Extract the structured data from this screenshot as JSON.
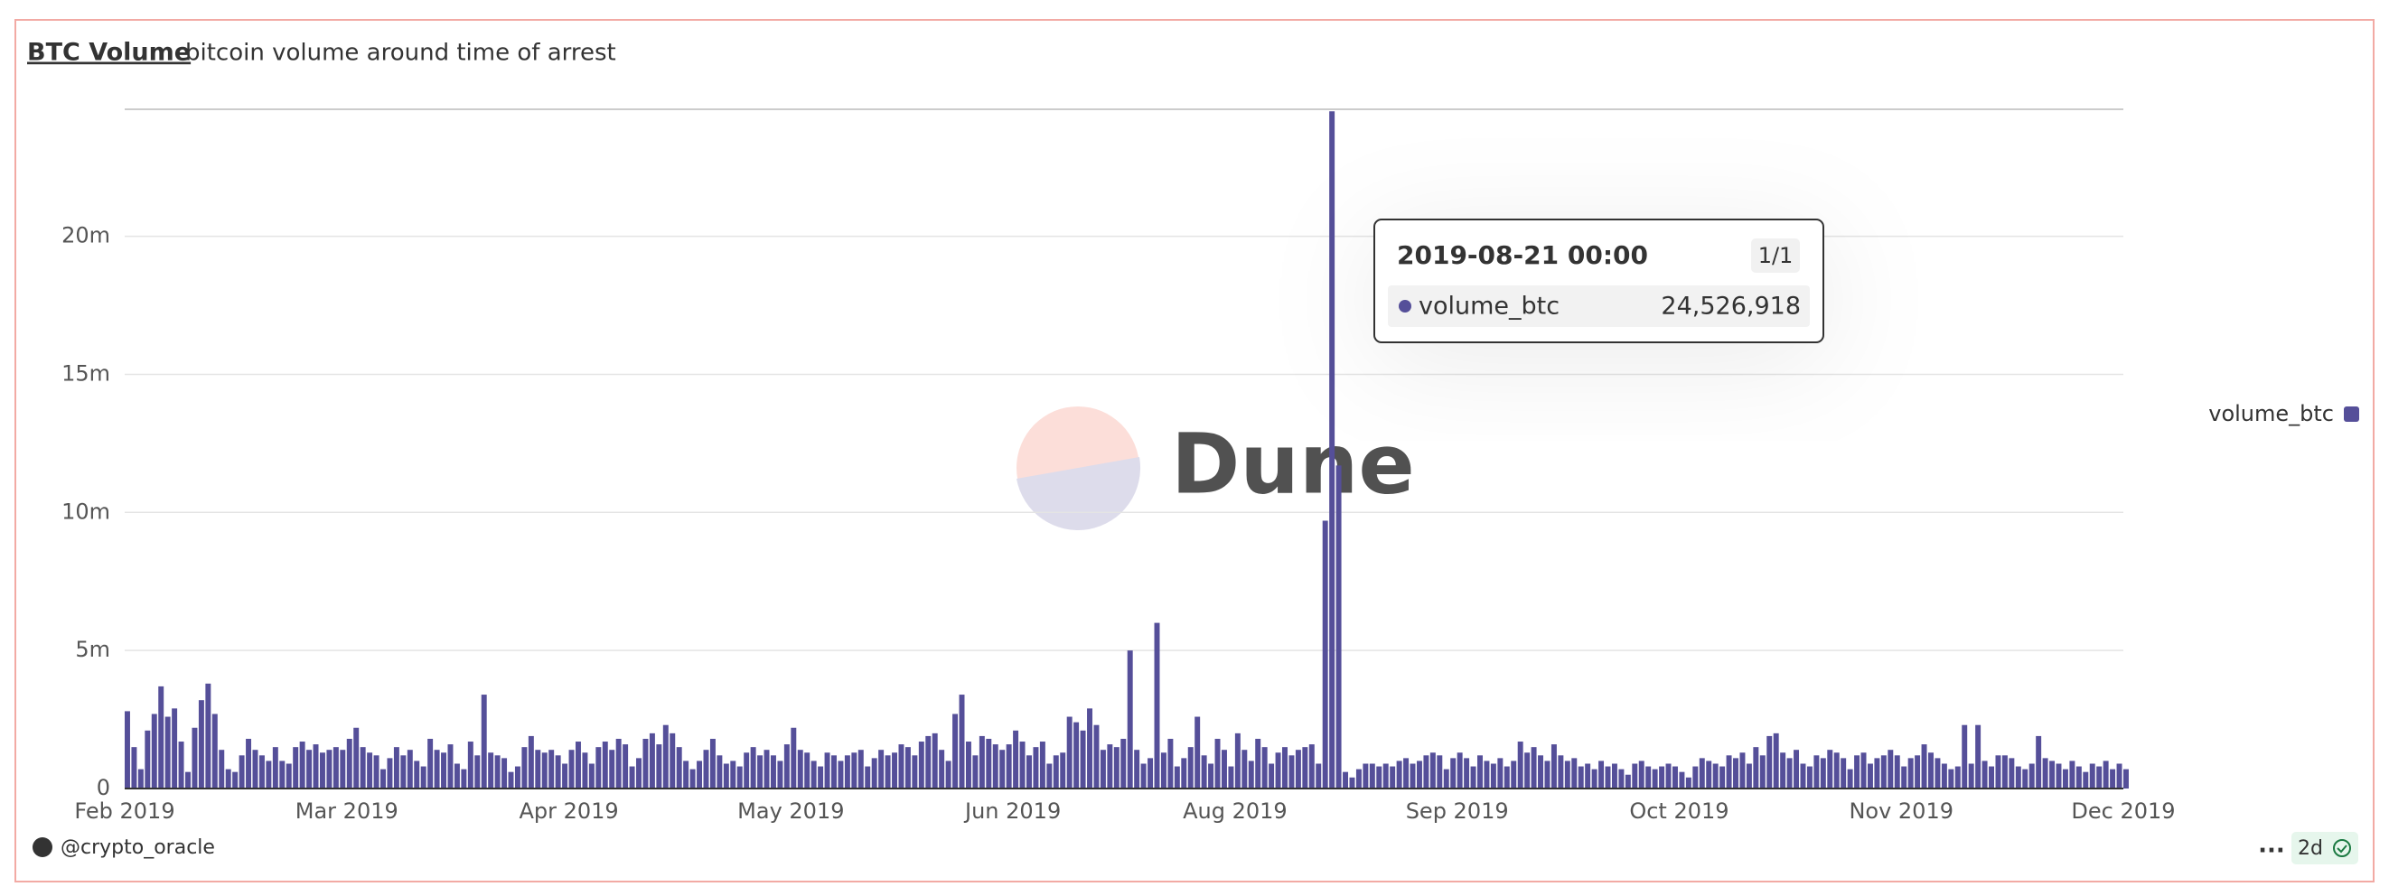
{
  "chart_data": {
    "type": "bar",
    "title": "BTC Volume",
    "subtitle": "bitcoin volume around time of arrest",
    "categories": [
      "Feb 2019",
      null,
      null,
      null,
      null,
      null,
      null,
      null,
      null,
      null,
      null,
      null,
      null,
      null,
      null,
      null,
      null,
      null,
      null,
      null,
      null,
      null,
      null,
      null,
      null,
      null,
      null,
      null,
      null,
      null,
      null,
      null,
      null,
      "Mar 2019",
      null,
      null,
      null,
      null,
      null,
      null,
      null,
      null,
      null,
      null,
      null,
      null,
      null,
      null,
      null,
      null,
      null,
      null,
      null,
      null,
      null,
      null,
      null,
      null,
      null,
      null,
      null,
      null,
      null,
      null,
      null,
      null,
      "Apr 2019",
      null,
      null,
      null,
      null,
      null,
      null,
      null,
      null,
      null,
      null,
      null,
      null,
      null,
      null,
      null,
      null,
      null,
      null,
      null,
      null,
      null,
      null,
      null,
      null,
      null,
      null,
      null,
      null,
      null,
      null,
      null,
      null,
      "May 2019",
      null,
      null,
      null,
      null,
      null,
      null,
      null,
      null,
      null,
      null,
      null,
      null,
      null,
      null,
      null,
      null,
      null,
      null,
      null,
      null,
      null,
      null,
      null,
      null,
      null,
      null,
      null,
      null,
      null,
      null,
      null,
      null,
      "Jun 2019",
      null,
      null,
      null,
      null,
      null,
      null,
      null,
      null,
      null,
      null,
      null,
      null,
      null,
      null,
      null,
      null,
      null,
      null,
      null,
      null,
      null,
      null,
      null,
      null,
      null,
      null,
      null,
      null,
      null,
      null,
      null,
      null,
      "Aug 2019",
      null,
      null,
      null,
      null,
      null,
      null,
      null,
      null,
      null,
      null,
      null,
      null,
      null,
      null,
      null,
      null,
      null,
      null,
      null,
      null,
      null,
      null,
      null,
      null,
      null,
      null,
      null,
      null,
      null,
      null,
      null,
      null,
      "Sep 2019",
      null,
      null,
      null,
      null,
      null,
      null,
      null,
      null,
      null,
      null,
      null,
      null,
      null,
      null,
      null,
      null,
      null,
      null,
      null,
      null,
      null,
      null,
      null,
      null,
      null,
      null,
      null,
      null,
      null,
      null,
      null,
      null,
      "Oct 2019",
      null,
      null,
      null,
      null,
      null,
      null,
      null,
      null,
      null,
      null,
      null,
      null,
      null,
      null,
      null,
      null,
      null,
      null,
      null,
      null,
      null,
      null,
      null,
      null,
      null,
      null,
      null,
      null,
      null,
      null,
      null,
      null,
      "Nov 2019",
      null,
      null,
      null,
      null,
      null,
      null,
      null,
      null,
      null,
      null,
      null,
      null,
      null,
      null,
      null,
      null,
      null,
      null,
      null,
      null,
      null,
      null,
      null,
      null,
      null,
      null,
      null,
      null,
      null,
      null,
      null,
      null,
      "Dec 2019"
    ],
    "series": [
      {
        "name": "volume_btc",
        "color": "#554f99",
        "values": [
          2800000.0,
          1500000.0,
          700000.0,
          2100000.0,
          2700000.0,
          3700000.0,
          2600000.0,
          2900000.0,
          1700000.0,
          600000.0,
          2200000.0,
          3200000.0,
          3800000.0,
          2700000.0,
          1400000.0,
          700000.0,
          600000.0,
          1200000.0,
          1800000.0,
          1400000.0,
          1200000.0,
          1000000.0,
          1500000.0,
          1000000.0,
          900000.0,
          1500000.0,
          1700000.0,
          1400000.0,
          1600000.0,
          1300000.0,
          1400000.0,
          1500000.0,
          1400000.0,
          1800000.0,
          2200000.0,
          1500000.0,
          1300000.0,
          1200000.0,
          700000.0,
          1100000.0,
          1500000.0,
          1200000.0,
          1400000.0,
          1000000.0,
          800000.0,
          1800000.0,
          1400000.0,
          1300000.0,
          1600000.0,
          900000.0,
          700000.0,
          1700000.0,
          1200000.0,
          3400000.0,
          1300000.0,
          1200000.0,
          1100000.0,
          600000.0,
          800000.0,
          1500000.0,
          1900000.0,
          1400000.0,
          1300000.0,
          1400000.0,
          1200000.0,
          900000.0,
          1400000.0,
          1700000.0,
          1300000.0,
          900000.0,
          1500000.0,
          1700000.0,
          1400000.0,
          1800000.0,
          1600000.0,
          800000.0,
          1100000.0,
          1800000.0,
          2000000.0,
          1600000.0,
          2300000.0,
          2000000.0,
          1500000.0,
          1000000.0,
          700000.0,
          1000000.0,
          1400000.0,
          1800000.0,
          1200000.0,
          900000.0,
          1000000.0,
          800000.0,
          1300000.0,
          1500000.0,
          1200000.0,
          1400000.0,
          1200000.0,
          1000000.0,
          1600000.0,
          2200000.0,
          1400000.0,
          1300000.0,
          1000000.0,
          800000.0,
          1300000.0,
          1200000.0,
          1000000.0,
          1200000.0,
          1300000.0,
          1400000.0,
          800000.0,
          1100000.0,
          1400000.0,
          1200000.0,
          1300000.0,
          1600000.0,
          1500000.0,
          1200000.0,
          1700000.0,
          1900000.0,
          2000000.0,
          1400000.0,
          1000000.0,
          2700000.0,
          3400000.0,
          1700000.0,
          1200000.0,
          1900000.0,
          1800000.0,
          1600000.0,
          1400000.0,
          1600000.0,
          2100000.0,
          1700000.0,
          1200000.0,
          1500000.0,
          1700000.0,
          900000.0,
          1200000.0,
          1300000.0,
          2600000.0,
          2400000.0,
          2100000.0,
          2900000.0,
          2300000.0,
          1400000.0,
          1600000.0,
          1500000.0,
          1800000.0,
          5000000.0,
          1400000.0,
          900000.0,
          1100000.0,
          6000000.0,
          1300000.0,
          1800000.0,
          800000.0,
          1100000.0,
          1500000.0,
          2600000.0,
          1200000.0,
          900000.0,
          1800000.0,
          1400000.0,
          800000.0,
          2000000.0,
          1400000.0,
          1000000.0,
          1800000.0,
          1500000.0,
          900000.0,
          1300000.0,
          1500000.0,
          1200000.0,
          1400000.0,
          1500000.0,
          1600000.0,
          900000.0,
          9700000.0,
          24526918,
          11700000.0,
          600000.0,
          400000.0,
          700000.0,
          900000.0,
          900000.0,
          800000.0,
          900000.0,
          800000.0,
          1000000.0,
          1100000.0,
          900000.0,
          1000000.0,
          1200000.0,
          1300000.0,
          1200000.0,
          700000.0,
          1100000.0,
          1300000.0,
          1100000.0,
          800000.0,
          1200000.0,
          1000000.0,
          900000.0,
          1100000.0,
          800000.0,
          1000000.0,
          1700000.0,
          1300000.0,
          1500000.0,
          1200000.0,
          1000000.0,
          1600000.0,
          1200000.0,
          1000000.0,
          1100000.0,
          800000.0,
          900000.0,
          700000.0,
          1000000.0,
          800000.0,
          900000.0,
          700000.0,
          500000.0,
          900000.0,
          1000000.0,
          800000.0,
          700000.0,
          800000.0,
          900000.0,
          800000.0,
          600000.0,
          400000.0,
          800000.0,
          1100000.0,
          1000000.0,
          900000.0,
          800000.0,
          1200000.0,
          1100000.0,
          1300000.0,
          900000.0,
          1500000.0,
          1200000.0,
          1900000.0,
          2000000.0,
          1300000.0,
          1100000.0,
          1400000.0,
          900000.0,
          800000.0,
          1200000.0,
          1100000.0,
          1400000.0,
          1300000.0,
          1100000.0,
          700000.0,
          1200000.0,
          1300000.0,
          900000.0,
          1100000.0,
          1200000.0,
          1400000.0,
          1200000.0,
          800000.0,
          1100000.0,
          1200000.0,
          1600000.0,
          1300000.0,
          1100000.0,
          900000.0,
          700000.0,
          800000.0,
          2300000.0,
          900000.0,
          2300000.0,
          1000000.0,
          800000.0,
          1200000.0,
          1200000.0,
          1100000.0,
          800000.0,
          700000.0,
          900000.0,
          1900000.0,
          1100000.0,
          1000000.0,
          900000.0,
          700000.0,
          1000000.0,
          800000.0,
          600000.0,
          900000.0,
          800000.0,
          1000000.0,
          700000.0,
          900000.0,
          700000.0
        ]
      }
    ],
    "ylim": [
      0,
      24600000
    ],
    "yticks": [
      0,
      {
        "value": 5000000,
        "label": "5m"
      },
      {
        "value": 10000000,
        "label": "10m"
      },
      {
        "value": 15000000,
        "label": "15m"
      },
      {
        "value": 20000000,
        "label": "20m"
      }
    ],
    "grid": true,
    "legend": "right",
    "tooltip": {
      "title": "2019-08-21 00:00",
      "counter": "1/1",
      "index": 179,
      "label": "24,526,918"
    },
    "watermark": "Dune",
    "author": "@crypto_oracle",
    "age": "2d",
    "menu": "..."
  }
}
